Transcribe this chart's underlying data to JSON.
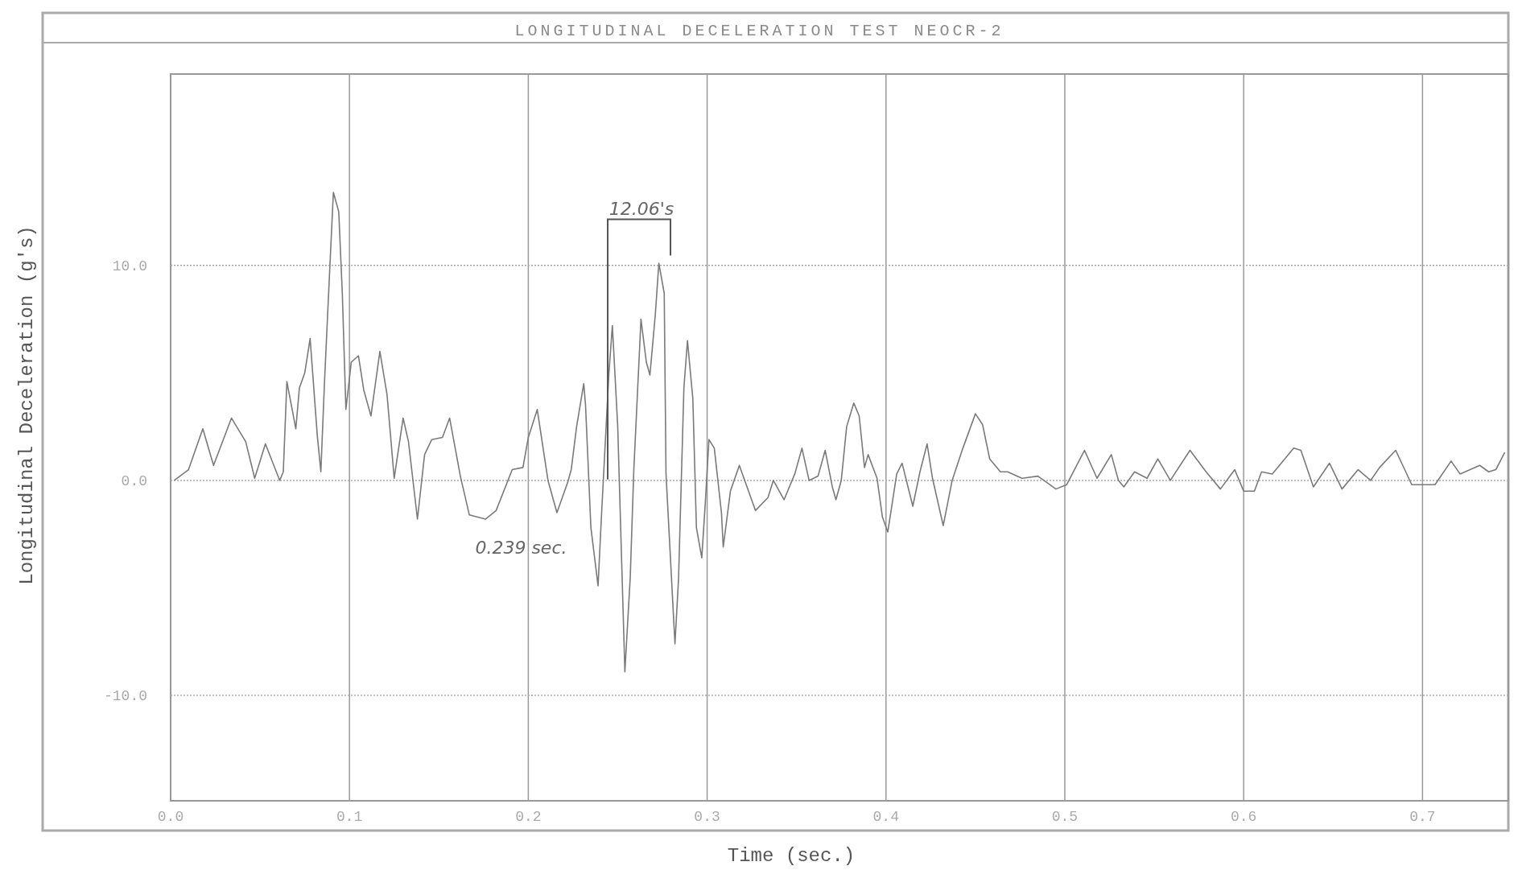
{
  "chart_data": {
    "type": "line",
    "title": "LONGITUDINAL DECELERATION TEST NEOCR-2",
    "xlabel": "Time (sec.)",
    "ylabel": "Longitudinal Deceleration (g's)",
    "xlim": [
      0,
      0.748
    ],
    "ylim": [
      -14.9,
      18.9
    ],
    "xticks": [
      {
        "value": 0,
        "label": "0.0"
      },
      {
        "value": 0.1,
        "label": "0.1"
      },
      {
        "value": 0.2,
        "label": "0.2"
      },
      {
        "value": 0.3,
        "label": "0.3"
      },
      {
        "value": 0.4,
        "label": "0.4"
      },
      {
        "value": 0.5,
        "label": "0.5"
      },
      {
        "value": 0.6,
        "label": "0.6"
      },
      {
        "value": 0.7,
        "label": "0.7"
      }
    ],
    "yticks": [
      {
        "value": -10,
        "label": "-10.0"
      },
      {
        "value": 0,
        "label": "0.0"
      },
      {
        "value": 10,
        "label": "10.0"
      }
    ],
    "grid": true,
    "line_style": "solid",
    "marker": "none",
    "annotations": [
      "12.06's",
      "0.239 sec."
    ],
    "series": [
      {
        "color": "#7a7a7a",
        "x": [
          0.002,
          0.01,
          0.018,
          0.024,
          0.034,
          0.042,
          0.047,
          0.053,
          0.061,
          0.063,
          0.065,
          0.07,
          0.072,
          0.075,
          0.078,
          0.082,
          0.084,
          0.086,
          0.088,
          0.091,
          0.094,
          0.096,
          0.098,
          0.101,
          0.105,
          0.108,
          0.112,
          0.117,
          0.121,
          0.125,
          0.13,
          0.133,
          0.138,
          0.142,
          0.146,
          0.152,
          0.156,
          0.162,
          0.167,
          0.176,
          0.182,
          0.191,
          0.197,
          0.2,
          0.205,
          0.211,
          0.216,
          0.222,
          0.224,
          0.227,
          0.231,
          0.232,
          0.235,
          0.239,
          0.241,
          0.245,
          0.247,
          0.25,
          0.252,
          0.254,
          0.257,
          0.259,
          0.263,
          0.266,
          0.268,
          0.271,
          0.273,
          0.276,
          0.277,
          0.282,
          0.284,
          0.287,
          0.289,
          0.292,
          0.294,
          0.297,
          0.299,
          0.301,
          0.304,
          0.308,
          0.309,
          0.313,
          0.318,
          0.327,
          0.334,
          0.337,
          0.343,
          0.349,
          0.353,
          0.357,
          0.362,
          0.366,
          0.37,
          0.372,
          0.375,
          0.378,
          0.382,
          0.385,
          0.388,
          0.39,
          0.395,
          0.398,
          0.401,
          0.406,
          0.409,
          0.415,
          0.419,
          0.423,
          0.426,
          0.432,
          0.437,
          0.443,
          0.45,
          0.454,
          0.458,
          0.464,
          0.468,
          0.476,
          0.485,
          0.495,
          0.501,
          0.511,
          0.518,
          0.526,
          0.53,
          0.533,
          0.539,
          0.546,
          0.552,
          0.559,
          0.57,
          0.579,
          0.587,
          0.595,
          0.6,
          0.606,
          0.61,
          0.616,
          0.628,
          0.632,
          0.639,
          0.648,
          0.655,
          0.664,
          0.671,
          0.676,
          0.685,
          0.694,
          0.698,
          0.707,
          0.716,
          0.721,
          0.732,
          0.737,
          0.741,
          0.746
        ],
        "values": [
          0,
          0.5,
          2.4,
          0.7,
          2.9,
          1.8,
          0.1,
          1.7,
          0,
          0.4,
          4.6,
          2.4,
          4.3,
          5.0,
          6.6,
          2.1,
          0.4,
          4.5,
          8.1,
          13.4,
          12.5,
          8.7,
          3.3,
          5.5,
          5.8,
          4.2,
          3.0,
          6.0,
          4.0,
          0.1,
          2.9,
          1.8,
          -1.8,
          1.2,
          1.9,
          2.0,
          2.9,
          0.2,
          -1.6,
          -1.8,
          -1.4,
          0.5,
          0.6,
          2.0,
          3.3,
          0,
          -1.5,
          -0.1,
          0.5,
          2.5,
          4.5,
          3.5,
          -2.2,
          -4.9,
          -1.5,
          4.9,
          7.2,
          2.5,
          -3.2,
          -8.9,
          -4.5,
          0.5,
          7.5,
          5.5,
          4.9,
          7.7,
          10.1,
          8.7,
          0.3,
          -7.6,
          -4.6,
          4.3,
          6.5,
          3.8,
          -2.2,
          -3.6,
          -1.0,
          1.9,
          1.5,
          -1.5,
          -3.1,
          -0.5,
          0.7,
          -1.4,
          -0.8,
          0,
          -0.9,
          0.3,
          1.5,
          0,
          0.2,
          1.4,
          -0.3,
          -0.9,
          0,
          2.5,
          3.6,
          3.0,
          0.6,
          1.2,
          0.1,
          -1.7,
          -2.4,
          0.3,
          0.8,
          -1.2,
          0.4,
          1.7,
          0.1,
          -2.1,
          0,
          1.5,
          3.1,
          2.6,
          1.0,
          0.4,
          0.4,
          0.1,
          0.2,
          -0.4,
          -0.2,
          1.4,
          0.1,
          1.2,
          0,
          -0.3,
          0.4,
          0.1,
          1.0,
          0,
          1.4,
          0.4,
          -0.4,
          0.5,
          -0.5,
          -0.5,
          0.4,
          0.3,
          1.5,
          1.4,
          -0.3,
          0.8,
          -0.4,
          0.5,
          0,
          0.6,
          1.4,
          -0.2,
          -0.2,
          -0.2,
          0.9,
          0.3,
          0.7,
          0.4,
          0.5,
          1.3
        ]
      }
    ]
  }
}
